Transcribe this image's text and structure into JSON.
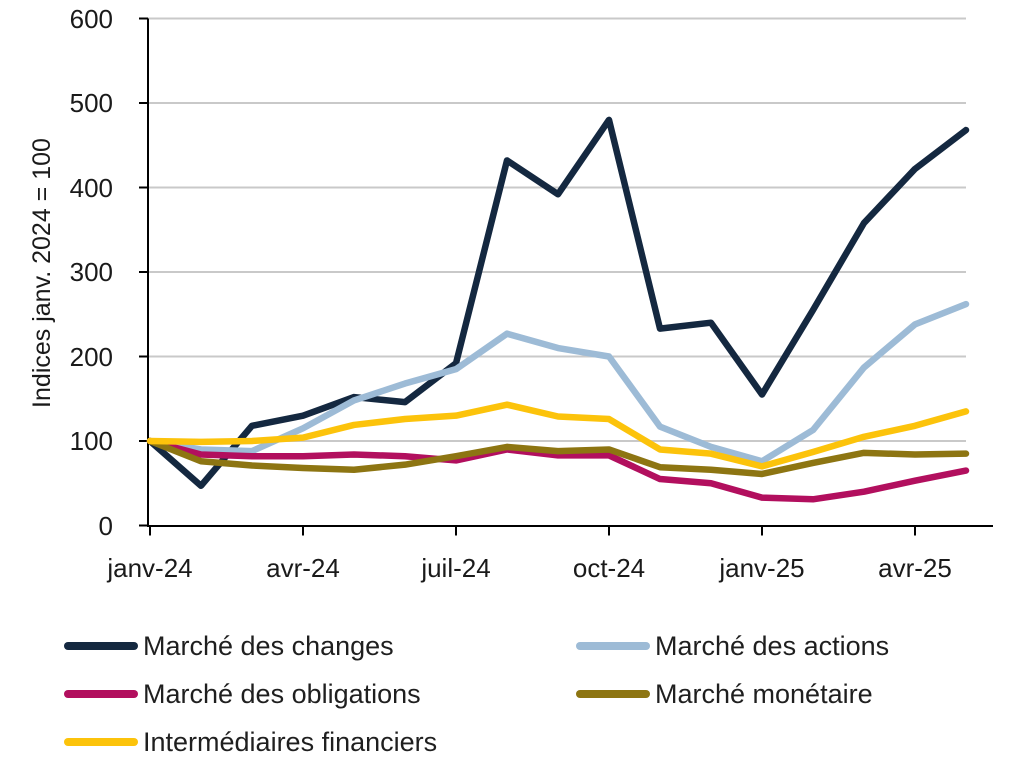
{
  "chart_data": {
    "type": "line",
    "title": "",
    "xlabel": "",
    "ylabel": "Indices janv. 2024 = 100",
    "ylim": [
      0,
      600
    ],
    "y_ticks": [
      0,
      100,
      200,
      300,
      400,
      500,
      600
    ],
    "x": [
      "janv-24",
      "févr-24",
      "mars-24",
      "avr-24",
      "mai-24",
      "juin-24",
      "juil-24",
      "août-24",
      "sept-24",
      "oct-24",
      "nov-24",
      "déc-24",
      "janv-25",
      "févr-25",
      "mars-25",
      "avr-25",
      "mai-25"
    ],
    "x_tick_labels": [
      "janv-24",
      "avr-24",
      "juil-24",
      "oct-24",
      "janv-25",
      "avr-25"
    ],
    "x_tick_indices": [
      0,
      3,
      6,
      9,
      12,
      15
    ],
    "grid": true,
    "legend_position": "bottom-two-columns",
    "series": [
      {
        "name": "Marché des changes",
        "color": "#142840",
        "values": [
          100,
          47,
          118,
          130,
          152,
          146,
          192,
          432,
          392,
          480,
          233,
          240,
          155,
          255,
          358,
          422,
          468
        ]
      },
      {
        "name": "Marché des actions",
        "color": "#9dbbd6",
        "values": [
          100,
          90,
          88,
          115,
          148,
          168,
          185,
          227,
          210,
          200,
          117,
          93,
          76,
          113,
          187,
          238,
          262
        ]
      },
      {
        "name": "Marché des obligations",
        "color": "#b20f5e",
        "values": [
          100,
          84,
          82,
          82,
          84,
          82,
          77,
          90,
          83,
          83,
          55,
          50,
          33,
          31,
          40,
          53,
          65
        ]
      },
      {
        "name": "Marché monétaire",
        "color": "#8d7512",
        "values": [
          100,
          76,
          71,
          68,
          66,
          72,
          82,
          93,
          88,
          90,
          69,
          66,
          61,
          74,
          86,
          84,
          85
        ]
      },
      {
        "name": "Intermédiaires financiers",
        "color": "#fcc30b",
        "values": [
          100,
          99,
          100,
          104,
          119,
          126,
          130,
          143,
          129,
          126,
          90,
          85,
          70,
          87,
          105,
          118,
          135
        ]
      }
    ],
    "axis_color": "#000000",
    "grid_color": "#c9c9c9",
    "text_color": "#1a1a1a"
  }
}
